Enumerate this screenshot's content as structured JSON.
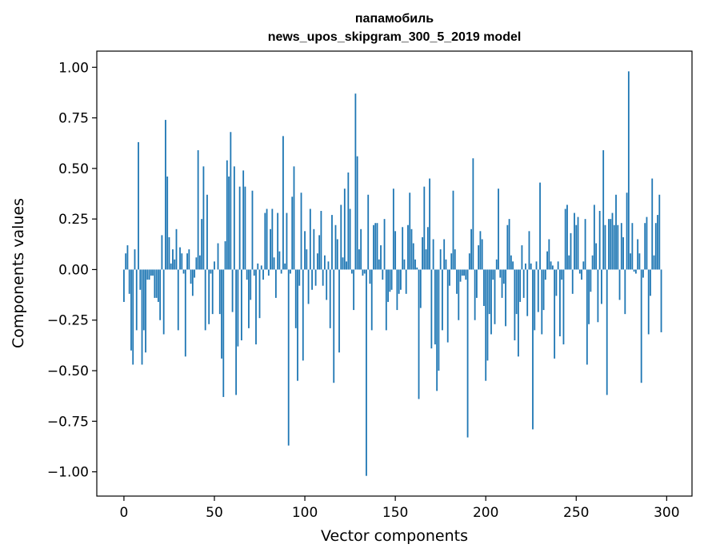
{
  "chart_data": {
    "type": "bar",
    "title_line1": "папамобиль",
    "title_line2": "news_upos_skipgram_300_5_2019 model",
    "xlabel": "Vector components",
    "ylabel": "Components values",
    "xlim": [
      -15,
      314
    ],
    "ylim": [
      -1.12,
      1.08
    ],
    "xticks": [
      0,
      50,
      100,
      150,
      200,
      250,
      300
    ],
    "xtick_labels": [
      "0",
      "50",
      "100",
      "150",
      "200",
      "250",
      "300"
    ],
    "yticks": [
      -1.0,
      -0.75,
      -0.5,
      -0.25,
      0.0,
      0.25,
      0.5,
      0.75,
      1.0
    ],
    "ytick_labels": [
      "−1.00",
      "−0.75",
      "−0.50",
      "−0.25",
      "0.00",
      "0.25",
      "0.50",
      "0.75",
      "1.00"
    ],
    "bar_color": "#1f77b4",
    "grid": false,
    "x_start": 0,
    "values": [
      -0.16,
      0.08,
      0.12,
      -0.12,
      -0.4,
      -0.47,
      0.1,
      -0.3,
      0.63,
      -0.1,
      -0.47,
      -0.3,
      -0.41,
      -0.05,
      -0.05,
      -0.03,
      -0.03,
      -0.14,
      -0.14,
      -0.16,
      -0.25,
      0.17,
      -0.32,
      0.74,
      0.46,
      0.16,
      0.03,
      0.1,
      0.05,
      0.2,
      -0.3,
      0.11,
      0.08,
      -0.02,
      -0.43,
      0.08,
      0.1,
      -0.07,
      -0.13,
      -0.04,
      0.06,
      0.59,
      0.07,
      0.25,
      0.51,
      -0.3,
      0.37,
      -0.27,
      -0.02,
      -0.22,
      0.04,
      0.0,
      0.13,
      -0.22,
      -0.44,
      -0.63,
      0.14,
      0.54,
      0.46,
      0.68,
      -0.21,
      0.51,
      -0.62,
      -0.38,
      0.41,
      -0.35,
      0.49,
      0.41,
      -0.05,
      -0.29,
      -0.15,
      0.39,
      -0.03,
      -0.37,
      0.03,
      -0.24,
      0.02,
      -0.05,
      0.28,
      0.3,
      -0.03,
      0.2,
      0.3,
      0.06,
      -0.14,
      0.28,
      0.09,
      -0.02,
      0.66,
      0.03,
      0.28,
      -0.87,
      -0.02,
      0.36,
      0.51,
      -0.29,
      -0.55,
      -0.08,
      0.38,
      -0.45,
      0.19,
      0.1,
      -0.17,
      0.3,
      -0.1,
      0.2,
      -0.08,
      0.08,
      0.17,
      0.29,
      -0.08,
      0.07,
      -0.15,
      0.04,
      -0.29,
      0.27,
      -0.56,
      0.22,
      0.15,
      -0.41,
      0.32,
      0.06,
      0.4,
      0.04,
      0.48,
      0.3,
      -0.02,
      -0.2,
      0.87,
      0.56,
      0.1,
      0.2,
      -0.03,
      -0.02,
      -1.02,
      0.37,
      -0.07,
      -0.3,
      0.22,
      0.23,
      0.23,
      0.05,
      0.12,
      -0.05,
      0.25,
      -0.3,
      -0.16,
      -0.11,
      -0.1,
      0.4,
      0.19,
      -0.2,
      -0.12,
      -0.1,
      0.21,
      0.05,
      -0.12,
      0.22,
      0.38,
      0.2,
      0.13,
      0.05,
      0.01,
      -0.64,
      -0.19,
      0.16,
      0.41,
      0.1,
      0.21,
      0.45,
      -0.39,
      0.15,
      -0.37,
      -0.6,
      -0.5,
      0.1,
      -0.3,
      0.15,
      0.05,
      -0.36,
      -0.08,
      0.08,
      0.39,
      0.1,
      -0.12,
      -0.25,
      -0.06,
      -0.03,
      -0.03,
      -0.05,
      -0.83,
      0.08,
      0.2,
      0.55,
      -0.25,
      -0.14,
      0.12,
      0.19,
      0.15,
      -0.18,
      -0.55,
      -0.45,
      -0.22,
      -0.32,
      -0.05,
      -0.27,
      0.05,
      0.4,
      -0.04,
      -0.14,
      -0.07,
      -0.28,
      0.22,
      0.25,
      0.07,
      0.04,
      -0.35,
      -0.22,
      -0.43,
      -0.16,
      0.12,
      -0.14,
      0.03,
      -0.23,
      0.19,
      0.03,
      -0.79,
      -0.3,
      0.04,
      -0.21,
      0.43,
      -0.32,
      -0.2,
      -0.05,
      0.09,
      0.15,
      0.04,
      0.02,
      -0.44,
      -0.13,
      0.04,
      -0.33,
      -0.05,
      -0.37,
      0.3,
      0.32,
      0.07,
      0.18,
      -0.12,
      0.28,
      0.22,
      0.26,
      -0.02,
      -0.05,
      0.04,
      0.25,
      -0.47,
      -0.27,
      -0.11,
      0.07,
      0.32,
      0.13,
      -0.26,
      0.29,
      -0.17,
      0.59,
      0.22,
      -0.62,
      0.25,
      0.25,
      0.28,
      0.22,
      0.37,
      0.22,
      -0.15,
      0.23,
      0.16,
      -0.22,
      0.38,
      0.98,
      0.08,
      0.23,
      -0.01,
      -0.02,
      0.15,
      0.08,
      -0.56,
      -0.04,
      0.23,
      0.26,
      -0.32,
      -0.13,
      0.45,
      0.07,
      0.23,
      0.27,
      0.37,
      -0.31
    ]
  }
}
